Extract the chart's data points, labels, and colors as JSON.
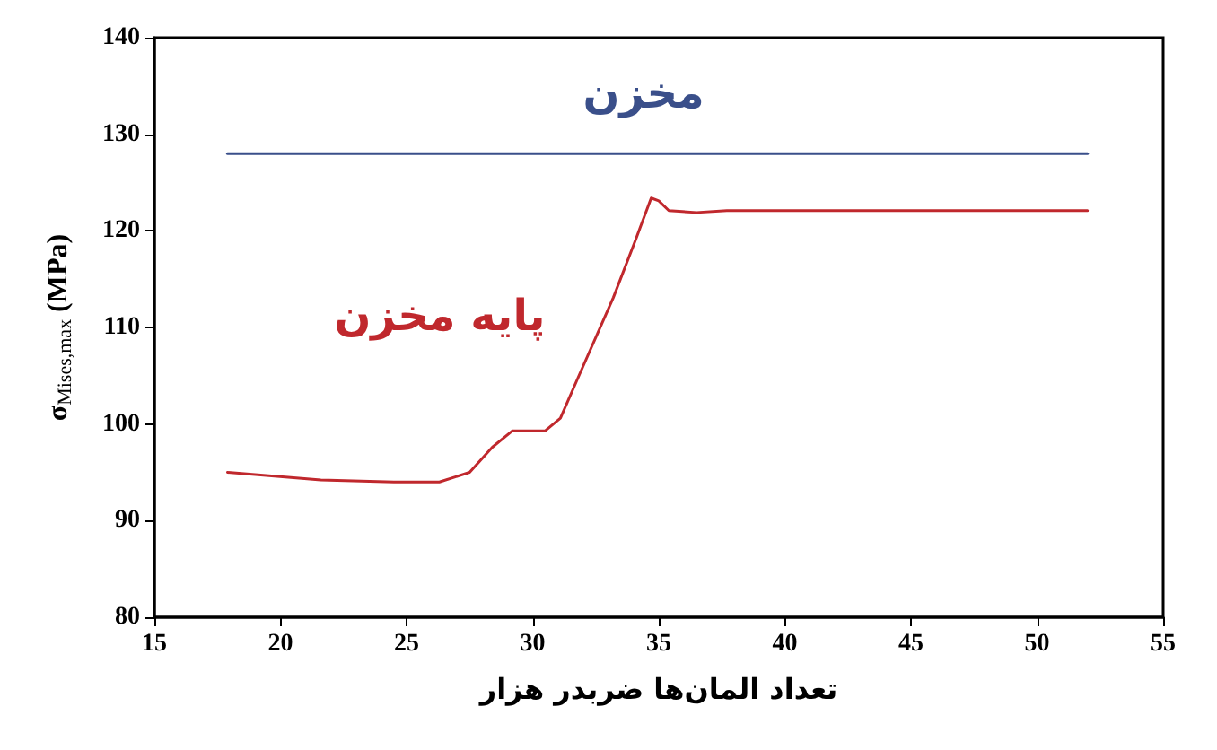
{
  "chart_data": {
    "type": "line",
    "xlabel": "تعداد المان‌ها ضربدر هزار",
    "ylabel": "σ$_{Mises,max}$ (MPa)",
    "x": [
      17.9,
      21.6,
      24.5,
      26.3,
      27.5,
      28.4,
      29.2,
      30.5,
      31.1,
      31.8,
      33.2,
      34.1,
      34.7,
      35.0,
      35.4,
      36.5,
      37.7,
      52.0
    ],
    "series": [
      {
        "name": "مخزن",
        "color": "#3a4f8a",
        "x": [
          17.9,
          52.0
        ],
        "values": [
          128,
          128
        ]
      },
      {
        "name": "پایه مخزن",
        "color": "#c0282d",
        "values": [
          95.0,
          94.2,
          94.0,
          94.0,
          95.0,
          97.6,
          99.3,
          99.3,
          100.6,
          104.8,
          113.1,
          119.2,
          123.4,
          123.1,
          122.1,
          121.9,
          122.1,
          122.1
        ]
      }
    ],
    "xlim": [
      15,
      55
    ],
    "xticks": [
      15,
      20,
      25,
      30,
      35,
      40,
      45,
      50,
      55
    ],
    "ylim": [
      80,
      140
    ],
    "yticks": [
      80,
      90,
      100,
      110,
      120,
      130,
      140
    ],
    "grid": false,
    "legend": false,
    "marker": "none",
    "line_style": "solid"
  }
}
